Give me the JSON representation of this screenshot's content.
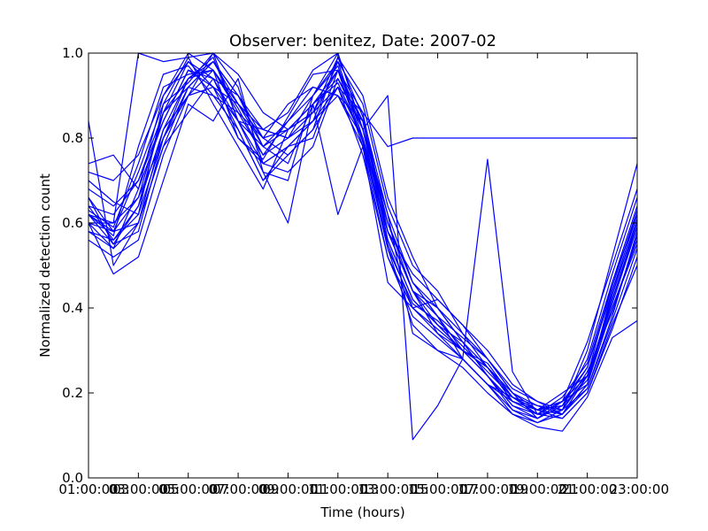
{
  "chart_data": {
    "type": "line",
    "title": "Observer: benitez, Date: 2007-02",
    "xlabel": "Time (hours)",
    "ylabel": "Normalized detection count",
    "x_tick_labels": [
      "01:00:00",
      "03:00:00",
      "05:00:00",
      "07:00:00",
      "09:00:00",
      "11:00:00",
      "13:00:00",
      "15:00:00",
      "17:00:00",
      "19:00:00",
      "21:00:00",
      "23:00:00"
    ],
    "x_tick_labels_overlaid": [
      "03",
      "05",
      "07",
      "09",
      "11",
      "13",
      "15",
      "17",
      "19",
      "21"
    ],
    "y_tick_labels": [
      "0.0",
      "0.2",
      "0.4",
      "0.6",
      "0.8",
      "1.0"
    ],
    "xlim": [
      1,
      23
    ],
    "ylim": [
      0,
      1
    ],
    "grid": false,
    "legend": "none",
    "line_color": "#0000ff",
    "x": [
      1,
      2,
      3,
      4,
      5,
      6,
      7,
      8,
      9,
      10,
      11,
      12,
      13,
      14,
      15,
      16,
      17,
      18,
      19,
      20,
      21,
      22,
      23
    ],
    "series": [
      {
        "values": [
          0.62,
          0.58,
          0.72,
          0.88,
          0.93,
          1.0,
          0.95,
          0.86,
          0.82,
          0.86,
          0.99,
          0.85,
          0.62,
          0.46,
          0.38,
          0.33,
          0.28,
          0.2,
          0.17,
          0.16,
          0.21,
          0.38,
          0.58
        ]
      },
      {
        "values": [
          0.66,
          0.55,
          0.64,
          0.86,
          0.98,
          0.92,
          0.88,
          0.78,
          0.74,
          0.88,
          0.93,
          0.8,
          0.55,
          0.4,
          0.35,
          0.3,
          0.27,
          0.19,
          0.15,
          0.18,
          0.26,
          0.44,
          0.62
        ]
      },
      {
        "values": [
          0.58,
          0.54,
          0.6,
          0.82,
          0.94,
          0.99,
          0.84,
          0.72,
          0.7,
          0.9,
          1.0,
          0.82,
          0.6,
          0.44,
          0.4,
          0.32,
          0.24,
          0.16,
          0.14,
          0.17,
          0.28,
          0.48,
          0.66
        ]
      },
      {
        "values": [
          0.74,
          0.76,
          0.68,
          0.9,
          1.0,
          0.96,
          0.8,
          0.75,
          0.85,
          0.95,
          0.96,
          0.86,
          0.58,
          0.48,
          0.42,
          0.36,
          0.3,
          0.22,
          0.18,
          0.15,
          0.22,
          0.4,
          0.55
        ]
      },
      {
        "values": [
          0.62,
          0.57,
          0.78,
          0.95,
          0.97,
          0.9,
          0.86,
          0.8,
          0.88,
          0.92,
          0.9,
          0.78,
          0.52,
          0.38,
          0.33,
          0.28,
          0.22,
          0.15,
          0.13,
          0.16,
          0.3,
          0.52,
          0.74
        ]
      },
      {
        "values": [
          0.6,
          0.6,
          0.66,
          0.8,
          0.92,
          0.98,
          0.9,
          0.82,
          0.8,
          0.84,
          0.98,
          0.88,
          0.64,
          0.5,
          0.44,
          0.34,
          0.26,
          0.18,
          0.16,
          0.2,
          0.24,
          0.42,
          0.6
        ]
      },
      {
        "values": [
          0.64,
          0.62,
          0.7,
          0.84,
          0.96,
          0.94,
          0.82,
          0.7,
          0.78,
          0.8,
          0.96,
          0.82,
          0.56,
          0.42,
          0.36,
          0.3,
          0.26,
          0.2,
          0.14,
          0.18,
          0.32,
          0.5,
          0.68
        ]
      },
      {
        "values": [
          0.56,
          0.52,
          0.56,
          0.76,
          0.9,
          1.0,
          0.92,
          0.74,
          0.72,
          0.78,
          0.94,
          0.84,
          0.6,
          0.46,
          0.38,
          0.28,
          0.22,
          0.18,
          0.16,
          0.14,
          0.2,
          0.36,
          0.5
        ]
      },
      {
        "values": [
          0.7,
          0.65,
          0.62,
          0.88,
          0.99,
          0.88,
          0.78,
          0.68,
          0.82,
          0.86,
          0.92,
          0.8,
          0.58,
          0.44,
          0.34,
          0.3,
          0.24,
          0.17,
          0.15,
          0.19,
          0.27,
          0.46,
          0.64
        ]
      },
      {
        "values": [
          0.63,
          0.59,
          0.74,
          0.92,
          0.95,
          0.96,
          0.87,
          0.76,
          0.84,
          0.9,
          0.97,
          0.79,
          0.54,
          0.41,
          0.37,
          0.31,
          0.25,
          0.19,
          0.16,
          0.17,
          0.23,
          0.43,
          0.61
        ]
      },
      {
        "values": [
          0.84,
          0.5,
          0.6,
          0.78,
          0.86,
          0.94,
          0.9,
          0.8,
          0.76,
          0.82,
          0.99,
          0.9,
          0.66,
          0.52,
          0.4,
          0.34,
          0.28,
          0.21,
          0.18,
          0.16,
          0.25,
          0.39,
          0.57
        ]
      },
      {
        "values": [
          0.6,
          0.48,
          0.52,
          0.7,
          0.88,
          0.84,
          0.94,
          0.72,
          0.6,
          0.88,
          0.62,
          0.78,
          0.46,
          0.4,
          0.42,
          0.36,
          0.28,
          0.2,
          0.16,
          0.15,
          0.24,
          0.41,
          0.59
        ]
      },
      {
        "values": [
          0.62,
          0.6,
          1.0,
          0.98,
          0.99,
          1.0,
          0.84,
          0.82,
          0.86,
          0.96,
          1.0,
          0.82,
          0.62,
          0.34,
          0.3,
          0.28,
          0.75,
          0.25,
          0.15,
          0.14,
          0.2,
          0.35,
          0.52
        ]
      },
      {
        "values": [
          0.66,
          0.58,
          0.66,
          0.86,
          0.92,
          0.98,
          0.88,
          0.8,
          0.82,
          0.88,
          0.94,
          0.82,
          0.9,
          0.09,
          0.17,
          0.28,
          0.22,
          0.19,
          0.16,
          0.18,
          0.22,
          0.44,
          0.6
        ]
      },
      {
        "values": [
          0.58,
          0.56,
          0.62,
          0.8,
          0.94,
          0.96,
          0.86,
          0.76,
          0.8,
          0.86,
          0.96,
          0.78,
          0.58,
          0.44,
          0.36,
          0.3,
          0.24,
          0.18,
          0.15,
          0.16,
          0.24,
          0.4,
          0.56
        ]
      },
      {
        "values": [
          0.6,
          0.54,
          0.68,
          0.84,
          0.96,
          0.92,
          0.8,
          0.74,
          0.78,
          0.84,
          0.92,
          0.86,
          0.78,
          0.8,
          0.8,
          0.8,
          0.8,
          0.8,
          0.8,
          0.8,
          0.8,
          0.8,
          0.8
        ]
      },
      {
        "values": [
          0.72,
          0.7,
          0.76,
          0.9,
          0.98,
          0.94,
          0.84,
          0.78,
          0.84,
          0.92,
          0.9,
          0.84,
          0.56,
          0.42,
          0.36,
          0.32,
          0.26,
          0.19,
          0.17,
          0.15,
          0.21,
          0.37,
          0.54
        ]
      },
      {
        "values": [
          0.64,
          0.56,
          0.64,
          0.82,
          0.9,
          0.96,
          0.88,
          0.82,
          0.8,
          0.9,
          0.98,
          0.8,
          0.6,
          0.46,
          0.4,
          0.32,
          0.24,
          0.17,
          0.14,
          0.17,
          0.26,
          0.45,
          0.63
        ]
      },
      {
        "values": [
          0.6,
          0.58,
          0.6,
          0.78,
          0.92,
          0.9,
          0.82,
          0.7,
          0.76,
          0.82,
          0.92,
          0.76,
          0.52,
          0.4,
          0.34,
          0.28,
          0.22,
          0.16,
          0.13,
          0.15,
          0.22,
          0.42,
          0.59
        ]
      },
      {
        "values": [
          0.68,
          0.64,
          0.7,
          0.86,
          0.94,
          0.98,
          0.9,
          0.78,
          0.82,
          0.88,
          0.96,
          0.84,
          0.58,
          0.44,
          0.38,
          0.3,
          0.26,
          0.18,
          0.16,
          0.18,
          0.24,
          0.46,
          0.62
        ]
      },
      {
        "values": [
          0.62,
          0.55,
          0.58,
          0.8,
          0.9,
          0.92,
          0.84,
          0.74,
          0.78,
          0.84,
          0.9,
          0.8,
          0.54,
          0.36,
          0.3,
          0.26,
          0.2,
          0.15,
          0.12,
          0.11,
          0.19,
          0.33,
          0.37
        ]
      }
    ]
  }
}
